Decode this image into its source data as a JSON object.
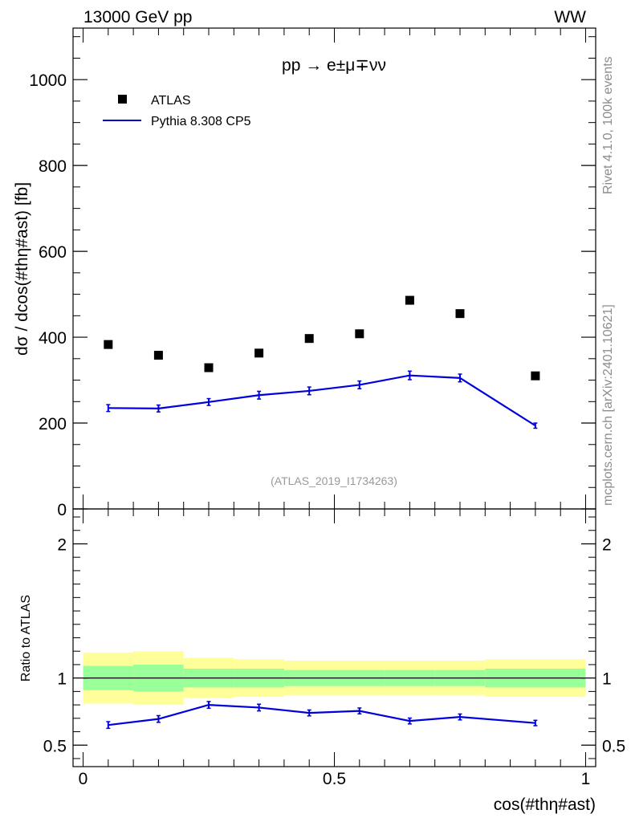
{
  "header": {
    "left": "13000 GeV pp",
    "right": "WW"
  },
  "side_labels": {
    "rivet": "Rivet 4.1.0,  100k events",
    "source": "mcplots.cern.ch [arXiv:2401.10621]"
  },
  "chart_data": [
    {
      "panel": "main",
      "type": "scatter",
      "title": "pp →  e±μ∓νν",
      "ylabel": "dσ / dcos(#thη#ast) [fb]",
      "xlabel": "",
      "analysis_id": "(ATLAS_2019_I1734263)",
      "xlim": [
        -0.02,
        1.02
      ],
      "ylim": [
        0,
        1120
      ],
      "yticks": [
        0,
        200,
        400,
        600,
        800,
        1000
      ],
      "ytick_labels": [
        "0",
        "200",
        "400",
        "600",
        "800",
        "1000"
      ],
      "legend_position": "top-left",
      "series": [
        {
          "name": "ATLAS",
          "kind": "markers",
          "color": "#000000",
          "x": [
            0.05,
            0.15,
            0.25,
            0.35,
            0.45,
            0.55,
            0.65,
            0.75,
            0.9
          ],
          "y": [
            383,
            358,
            329,
            363,
            397,
            408,
            486,
            455,
            310
          ]
        },
        {
          "name": "Pythia 8.308 CP5",
          "kind": "line",
          "color": "#0000dd",
          "x": [
            0.05,
            0.15,
            0.25,
            0.35,
            0.45,
            0.55,
            0.65,
            0.75,
            0.9
          ],
          "y": [
            235,
            234,
            249,
            265,
            275,
            289,
            311,
            305,
            194
          ],
          "yerr": [
            8,
            8,
            8,
            9,
            9,
            9,
            10,
            9,
            6
          ]
        }
      ]
    },
    {
      "panel": "ratio",
      "type": "line",
      "ylabel": "Ratio to ATLAS",
      "xlabel": "cos(#thη#ast)",
      "xlim": [
        -0.02,
        1.02
      ],
      "ylim": [
        0.34,
        2.26
      ],
      "yticks": [
        0.5,
        1,
        2
      ],
      "ytick_labels": [
        "0.5",
        "1",
        "2"
      ],
      "xticks": [
        0,
        0.5,
        1
      ],
      "xtick_labels": [
        "0",
        "0.5",
        "1"
      ],
      "reference_line": 1,
      "bins": [
        [
          0.0,
          0.1
        ],
        [
          0.1,
          0.2
        ],
        [
          0.2,
          0.3
        ],
        [
          0.3,
          0.4
        ],
        [
          0.4,
          0.5
        ],
        [
          0.5,
          0.6
        ],
        [
          0.6,
          0.7
        ],
        [
          0.7,
          0.8
        ],
        [
          0.8,
          1.0
        ]
      ],
      "band_inner": [
        [
          0.91,
          1.09
        ],
        [
          0.9,
          1.1
        ],
        [
          0.93,
          1.07
        ],
        [
          0.93,
          1.07
        ],
        [
          0.94,
          1.06
        ],
        [
          0.94,
          1.06
        ],
        [
          0.94,
          1.06
        ],
        [
          0.94,
          1.06
        ],
        [
          0.93,
          1.07
        ]
      ],
      "band_outer": [
        [
          0.81,
          1.19
        ],
        [
          0.8,
          1.2
        ],
        [
          0.85,
          1.15
        ],
        [
          0.86,
          1.14
        ],
        [
          0.87,
          1.13
        ],
        [
          0.87,
          1.13
        ],
        [
          0.87,
          1.13
        ],
        [
          0.87,
          1.13
        ],
        [
          0.86,
          1.14
        ]
      ],
      "band_inner_color": "#99ff99",
      "band_outer_color": "#ffff99",
      "series": [
        {
          "name": "Pythia 8.308 CP5",
          "color": "#0000dd",
          "x": [
            0.05,
            0.15,
            0.25,
            0.35,
            0.45,
            0.55,
            0.65,
            0.75,
            0.9
          ],
          "y": [
            0.65,
            0.695,
            0.8,
            0.78,
            0.74,
            0.755,
            0.68,
            0.71,
            0.665
          ],
          "yerr": [
            0.025,
            0.025,
            0.025,
            0.025,
            0.022,
            0.022,
            0.022,
            0.022,
            0.02
          ]
        }
      ]
    }
  ]
}
